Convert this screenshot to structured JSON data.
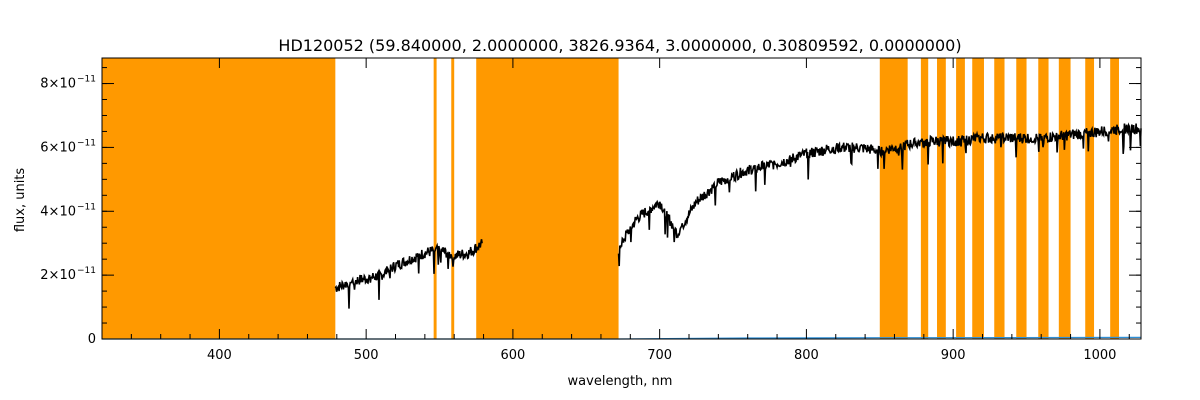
{
  "chart_data": {
    "type": "line",
    "title": "HD120052   (59.840000, 2.0000000, 3826.9364, 3.0000000, 0.30809592, 0.0000000)",
    "xlabel": "wavelength, nm",
    "ylabel": "flux, units",
    "xlim": [
      320,
      1028
    ],
    "ylim": [
      0,
      8.8e-11
    ],
    "grid": false,
    "legend": "none",
    "x_ticks": [
      {
        "value": 400,
        "label": "400"
      },
      {
        "value": 500,
        "label": "500"
      },
      {
        "value": 600,
        "label": "600"
      },
      {
        "value": 700,
        "label": "700"
      },
      {
        "value": 800,
        "label": "800"
      },
      {
        "value": 900,
        "label": "900"
      },
      {
        "value": 1000,
        "label": "1000"
      }
    ],
    "y_ticks": [
      {
        "value": 0,
        "label": "0",
        "exp": ""
      },
      {
        "value": 2e-11,
        "label": "2×10",
        "exp": "−11"
      },
      {
        "value": 4e-11,
        "label": "4×10",
        "exp": "−11"
      },
      {
        "value": 6e-11,
        "label": "6×10",
        "exp": "−11"
      },
      {
        "value": 8e-11,
        "label": "8×10",
        "exp": "−11"
      }
    ],
    "masked_regions_nm": [
      [
        320,
        479
      ],
      [
        546,
        548
      ],
      [
        558,
        560
      ],
      [
        575,
        672
      ],
      [
        850,
        869
      ],
      [
        878,
        883
      ],
      [
        889,
        895
      ],
      [
        902,
        908
      ],
      [
        913,
        921
      ],
      [
        928,
        935
      ],
      [
        943,
        950
      ],
      [
        958,
        965
      ],
      [
        972,
        980
      ],
      [
        990,
        996
      ],
      [
        1007,
        1013
      ]
    ],
    "series": [
      {
        "x": [
          479,
          490,
          500,
          510,
          520,
          530,
          540,
          550,
          560,
          570,
          579,
          672,
          685,
          700,
          712,
          725,
          740,
          760,
          780,
          800,
          820,
          835,
          850,
          870,
          885,
          900,
          920,
          940,
          960,
          980,
          1000,
          1015,
          1028
        ],
        "y": [
          1.6e-11,
          1.8e-11,
          1.9e-11,
          2e-11,
          2.3e-11,
          2.5e-11,
          2.7e-11,
          2.8e-11,
          2.6e-11,
          2.7e-11,
          3e-11,
          2.9e-11,
          3.8e-11,
          4.3e-11,
          3.3e-11,
          4.3e-11,
          4.9e-11,
          5.3e-11,
          5.5e-11,
          5.8e-11,
          6e-11,
          6e-11,
          5.9e-11,
          6.1e-11,
          6.2e-11,
          6.2e-11,
          6.3e-11,
          6.3e-11,
          6.3e-11,
          6.4e-11,
          6.5e-11,
          6.6e-11,
          6.6e-11
        ],
        "color": "#000000"
      },
      {
        "x": [
          320,
          479,
          579,
          672,
          760,
          850,
          1028
        ],
        "y": [
          0,
          0,
          0,
          0,
          3e-13,
          4e-13,
          5e-13
        ],
        "color": "#2e8fd6"
      }
    ],
    "mask_color": "#ff9900"
  }
}
